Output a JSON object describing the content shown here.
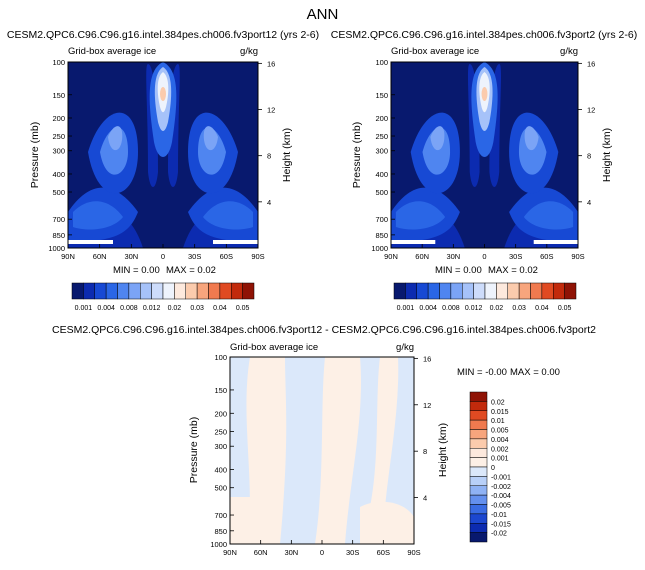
{
  "figure": {
    "title": "ANN"
  },
  "chart_data": [
    {
      "type": "heatmap",
      "title": "CESM2.QPC6.C96.C96.g16.intel.384pes.ch006.fv3port12 (yrs 2-6)",
      "subtitle_left": "Grid-box average ice",
      "subtitle_right": "g/kg",
      "ylabel": "Pressure (mb)",
      "ylabel_right": "Height (km)",
      "x_ticks": [
        "90N",
        "60N",
        "30N",
        "0",
        "30S",
        "60S",
        "90S"
      ],
      "y_ticks": [
        100,
        150,
        200,
        250,
        300,
        400,
        500,
        700,
        850,
        1000
      ],
      "height_ticks": [
        16,
        12,
        8,
        4
      ],
      "ylim": [
        1000,
        100
      ],
      "xlim": [
        "90N",
        "90S"
      ],
      "min_label": "MIN = 0.00",
      "max_label": "MAX = 0.02",
      "stats": {
        "min": 0.0,
        "max": 0.02
      },
      "colorbar": {
        "levels": [
          0.001,
          0.002,
          0.004,
          0.006,
          0.008,
          0.01,
          0.012,
          0.015,
          0.02,
          0.025,
          0.03,
          0.035,
          0.04,
          0.045,
          0.05
        ],
        "labels": [
          "0.001",
          "0.004",
          "0.008",
          "0.012",
          "0.02",
          "0.03",
          "0.04",
          "0.05"
        ],
        "colors": [
          "#08196e",
          "#0c2bb0",
          "#1749d4",
          "#2a66e6",
          "#4f85f0",
          "#7ba4f6",
          "#a6c2f9",
          "#cddcfb",
          "#eef3fc",
          "#fde9dd",
          "#fbcbad",
          "#f7a57d",
          "#f07a4f",
          "#e04a22",
          "#c22a0c",
          "#8f1305"
        ]
      }
    },
    {
      "type": "heatmap",
      "title": "CESM2.QPC6.C96.C96.g16.intel.384pes.ch006.fv3port2 (yrs 2-6)",
      "subtitle_left": "Grid-box average ice",
      "subtitle_right": "g/kg",
      "ylabel": "Pressure (mb)",
      "ylabel_right": "Height (km)",
      "x_ticks": [
        "90N",
        "60N",
        "30N",
        "0",
        "30S",
        "60S",
        "90S"
      ],
      "y_ticks": [
        100,
        150,
        200,
        250,
        300,
        400,
        500,
        700,
        850,
        1000
      ],
      "height_ticks": [
        16,
        12,
        8,
        4
      ],
      "ylim": [
        1000,
        100
      ],
      "xlim": [
        "90N",
        "90S"
      ],
      "min_label": "MIN = 0.00",
      "max_label": "MAX = 0.02",
      "stats": {
        "min": 0.0,
        "max": 0.02
      },
      "colorbar": {
        "levels": [
          0.001,
          0.002,
          0.004,
          0.006,
          0.008,
          0.01,
          0.012,
          0.015,
          0.02,
          0.025,
          0.03,
          0.035,
          0.04,
          0.045,
          0.05
        ],
        "labels": [
          "0.001",
          "0.004",
          "0.008",
          "0.012",
          "0.02",
          "0.03",
          "0.04",
          "0.05"
        ],
        "colors": [
          "#08196e",
          "#0c2bb0",
          "#1749d4",
          "#2a66e6",
          "#4f85f0",
          "#7ba4f6",
          "#a6c2f9",
          "#cddcfb",
          "#eef3fc",
          "#fde9dd",
          "#fbcbad",
          "#f7a57d",
          "#f07a4f",
          "#e04a22",
          "#c22a0c",
          "#8f1305"
        ]
      }
    },
    {
      "type": "heatmap",
      "title": "CESM2.QPC6.C96.C96.g16.intel.384pes.ch006.fv3port12 - CESM2.QPC6.C96.C96.g16.intel.384pes.ch006.fv3port2",
      "subtitle_left": "Grid-box average ice",
      "subtitle_right": "g/kg",
      "ylabel": "Pressure (mb)",
      "ylabel_right": "Height (km)",
      "x_ticks": [
        "90N",
        "60N",
        "30N",
        "0",
        "30S",
        "60S",
        "90S"
      ],
      "y_ticks": [
        100,
        150,
        200,
        250,
        300,
        400,
        500,
        700,
        850,
        1000
      ],
      "height_ticks": [
        16,
        12,
        8,
        4
      ],
      "ylim": [
        1000,
        100
      ],
      "xlim": [
        "90N",
        "90S"
      ],
      "min_label": "MIN = -0.00",
      "max_label": "MAX =  0.00",
      "stats": {
        "min": -0.0,
        "max": 0.0
      },
      "colorbar": {
        "labels": [
          "0.02",
          "0.015",
          "0.01",
          "0.005",
          "0.004",
          "0.002",
          "0.001",
          "0",
          "-0.001",
          "-0.002",
          "-0.004",
          "-0.005",
          "-0.01",
          "-0.015",
          "-0.02"
        ],
        "colors": [
          "#8f1305",
          "#c22a0c",
          "#e04a22",
          "#f07a4f",
          "#f7a57d",
          "#fbcbad",
          "#fde9dd",
          "#fdf0e6",
          "#dbe8fa",
          "#b8d0f8",
          "#8fb2f4",
          "#6490ee",
          "#3a6ce3",
          "#1c47cf",
          "#0c2bb0",
          "#08196e"
        ]
      }
    }
  ]
}
